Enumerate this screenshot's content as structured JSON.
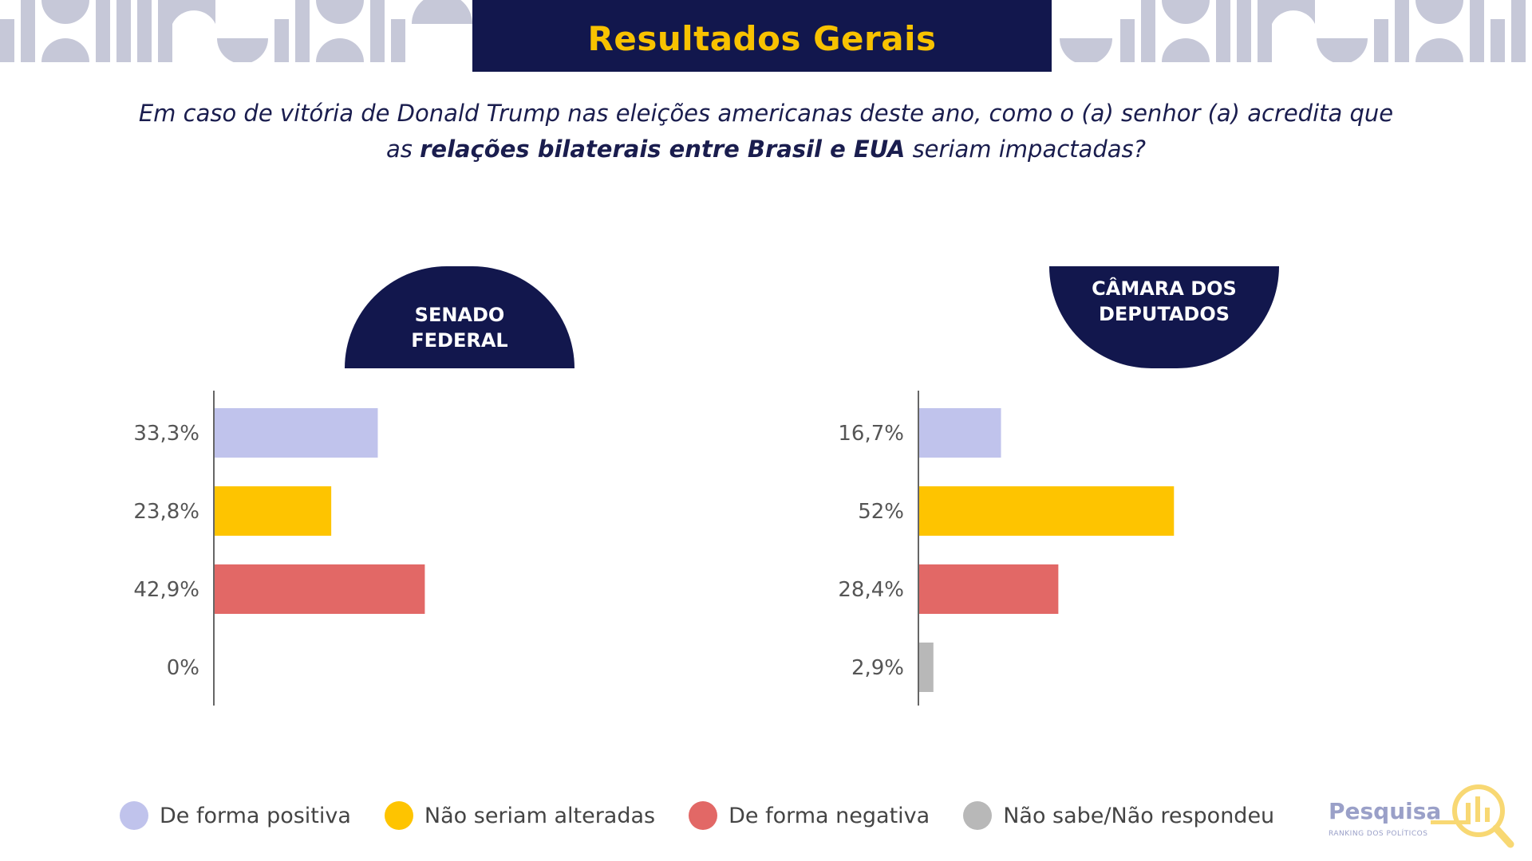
{
  "header": {
    "title": "Resultados Gerais",
    "question_part1": "Em caso de vitória de Donald Trump nas eleições americanas deste ano, como o (a) senhor (a) acredita que as ",
    "question_bold": "relações bilaterais entre Brasil e EUA",
    "question_part2": " seriam impactadas?"
  },
  "colors": {
    "navy": "#12174d",
    "gold": "#f8c200",
    "positive": "#c0c3ec",
    "unchanged": "#fec400",
    "negative": "#e26866",
    "unknown": "#b8b8b8",
    "deco": "#c6c8d8"
  },
  "chart_data": [
    {
      "type": "bar",
      "orientation": "horizontal",
      "title_line1": "SENADO",
      "title_line2": "FEDERAL",
      "categories": [
        "De forma positiva",
        "Não seriam alteradas",
        "De forma negativa",
        "Não sabe/Não respondeu"
      ],
      "values": [
        33.3,
        23.8,
        42.9,
        0
      ],
      "value_labels": [
        "33,3%",
        "23,8%",
        "42,9%",
        "0%"
      ],
      "xlim": [
        0,
        100
      ]
    },
    {
      "type": "bar",
      "orientation": "horizontal",
      "title_line1": "CÂMARA DOS",
      "title_line2": "DEPUTADOS",
      "categories": [
        "De forma positiva",
        "Não seriam alteradas",
        "De forma negativa",
        "Não sabe/Não respondeu"
      ],
      "values": [
        16.7,
        52,
        28.4,
        2.9
      ],
      "value_labels": [
        "16,7%",
        "52%",
        "28,4%",
        "2,9%"
      ],
      "xlim": [
        0,
        100
      ]
    }
  ],
  "legend": [
    {
      "label": "De forma positiva",
      "color": "#c0c3ec"
    },
    {
      "label": "Não seriam alteradas",
      "color": "#fec400"
    },
    {
      "label": "De forma negativa",
      "color": "#e26866"
    },
    {
      "label": "Não sabe/Não respondeu",
      "color": "#b8b8b8"
    }
  ],
  "logo": {
    "name": "Pesquisa",
    "sub": "RANKING DOS POLÍTICOS"
  }
}
